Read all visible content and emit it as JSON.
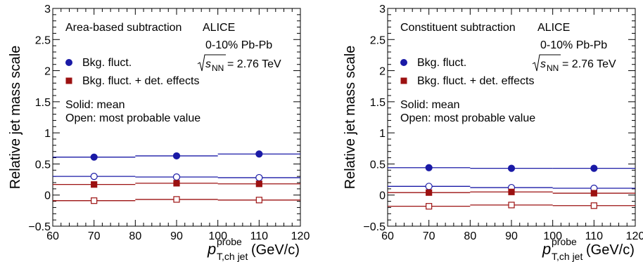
{
  "colors": {
    "blue": "#1a1aa6",
    "red": "#9c1111",
    "axis": "#000000"
  },
  "chart_data": [
    {
      "type": "scatter",
      "panel_text": [
        "Area-based subtraction",
        "ALICE",
        "0-10% Pb-Pb",
        "Solid: mean",
        "Open: most probable value"
      ],
      "energy_prefix": "s",
      "energy_sub": "NN",
      "energy_value": "= 2.76 TeV",
      "ylabel": "Relative jet mass scale",
      "xlabel_main": "p",
      "xlabel_sup": "probe",
      "xlabel_sub": "T,ch jet",
      "xlabel_unit": "(GeV/c)",
      "xlim": [
        60,
        120
      ],
      "ylim": [
        -0.5,
        3
      ],
      "xticks": [
        "60",
        "70",
        "80",
        "90",
        "100",
        "110",
        "120"
      ],
      "yticks": [
        "−0.5",
        "0",
        "0.5",
        "1",
        "1.5",
        "2",
        "2.5",
        "3"
      ],
      "grid": false,
      "legend": [
        {
          "label": "Bkg. fluct.",
          "marker": "circle",
          "color": "#1a1aa6"
        },
        {
          "label": "Bkg. fluct. + det. effects",
          "marker": "square",
          "color": "#9c1111"
        }
      ],
      "bins": [
        [
          60,
          80
        ],
        [
          80,
          100
        ],
        [
          100,
          120
        ]
      ],
      "x": [
        70,
        90,
        110
      ],
      "series": [
        {
          "marker": "circle",
          "fill": "solid",
          "color": "#1a1aa6",
          "values": [
            0.61,
            0.63,
            0.66
          ]
        },
        {
          "marker": "circle",
          "fill": "open",
          "color": "#1a1aa6",
          "values": [
            0.3,
            0.29,
            0.28
          ]
        },
        {
          "marker": "square",
          "fill": "solid",
          "color": "#9c1111",
          "values": [
            0.17,
            0.19,
            0.18
          ]
        },
        {
          "marker": "square",
          "fill": "open",
          "color": "#9c1111",
          "values": [
            -0.09,
            -0.07,
            -0.08
          ]
        }
      ]
    },
    {
      "type": "scatter",
      "panel_text": [
        "Constituent subtraction",
        "ALICE",
        "0-10% Pb-Pb",
        "Solid: mean",
        "Open: most probable value"
      ],
      "energy_prefix": "s",
      "energy_sub": "NN",
      "energy_value": "= 2.76 TeV",
      "ylabel": "Relative jet mass scale",
      "xlabel_main": "p",
      "xlabel_sup": "probe",
      "xlabel_sub": "T,ch jet",
      "xlabel_unit": "(GeV/c)",
      "xlim": [
        60,
        120
      ],
      "ylim": [
        -0.5,
        3
      ],
      "xticks": [
        "60",
        "70",
        "80",
        "90",
        "100",
        "110",
        "120"
      ],
      "yticks": [
        "−0.5",
        "0",
        "0.5",
        "1",
        "1.5",
        "2",
        "2.5",
        "3"
      ],
      "grid": false,
      "legend": [
        {
          "label": "Bkg. fluct.",
          "marker": "circle",
          "color": "#1a1aa6"
        },
        {
          "label": "Bkg. fluct. + det. effects",
          "marker": "square",
          "color": "#9c1111"
        }
      ],
      "bins": [
        [
          60,
          80
        ],
        [
          80,
          100
        ],
        [
          100,
          120
        ]
      ],
      "x": [
        70,
        90,
        110
      ],
      "series": [
        {
          "marker": "circle",
          "fill": "solid",
          "color": "#1a1aa6",
          "values": [
            0.44,
            0.43,
            0.43
          ]
        },
        {
          "marker": "circle",
          "fill": "open",
          "color": "#1a1aa6",
          "values": [
            0.14,
            0.12,
            0.11
          ]
        },
        {
          "marker": "square",
          "fill": "solid",
          "color": "#9c1111",
          "values": [
            0.04,
            0.05,
            0.03
          ]
        },
        {
          "marker": "square",
          "fill": "open",
          "color": "#9c1111",
          "values": [
            -0.18,
            -0.16,
            -0.17
          ]
        }
      ]
    }
  ]
}
